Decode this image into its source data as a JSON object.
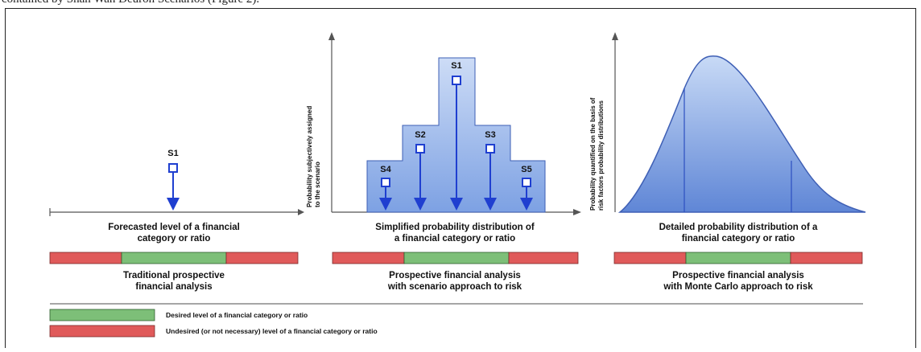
{
  "top_caption": "contained by Shan Wan Deuron Scenarios (Figure 2).",
  "colors": {
    "green": "#7dbf78",
    "red": "#e05a5a",
    "blue": "#1f3fd0",
    "light_blue": "#bcd0f2"
  },
  "panels": [
    {
      "caption": "Forecasted level of a financial\ncategory or ratio",
      "label": "Traditional prospective\nfinancial analysis",
      "scenarios": [
        "S1"
      ]
    },
    {
      "y_axis_label": "Probability subjectively assigned\nto the scenario",
      "caption": "Simplified probability distribution of\na financial category or ratio",
      "label": "Prospective financial analysis\nwith scenario approach to risk",
      "scenarios": [
        "S1",
        "S2",
        "S3",
        "S4",
        "S5"
      ]
    },
    {
      "y_axis_label": "Probability quantified on the basis of\nrisk factors probability distributions",
      "caption": "Detailed probability distribution of a\nfinancial category or ratio",
      "label": "Prospective financial analysis\nwith Monte Carlo approach to risk"
    }
  ],
  "legend": [
    {
      "color": "green",
      "label": "Desired level of a financial category or ratio"
    },
    {
      "color": "red",
      "label": "Undesired (or not necessary) level of a financial category or ratio"
    }
  ]
}
